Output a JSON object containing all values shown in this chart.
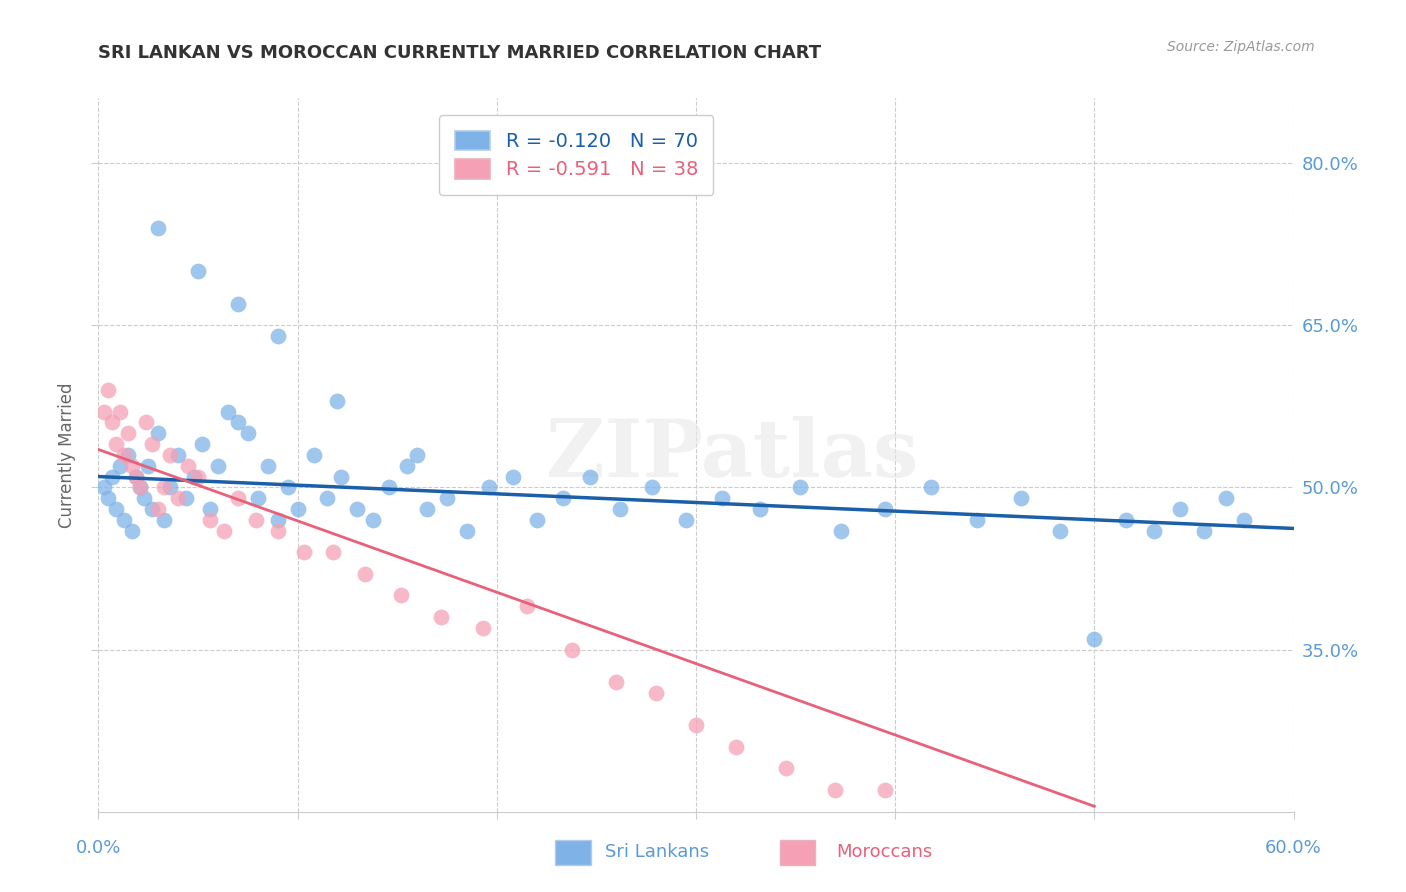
{
  "title": "SRI LANKAN VS MOROCCAN CURRENTLY MARRIED CORRELATION CHART",
  "source": "Source: ZipAtlas.com",
  "ylabel": "Currently Married",
  "legend_blue_r": -0.12,
  "legend_pink_r": -0.591,
  "legend_blue_n": 70,
  "legend_pink_n": 38,
  "xlim": [
    0.0,
    0.6
  ],
  "ylim": [
    0.2,
    0.86
  ],
  "yticks": [
    0.35,
    0.5,
    0.65,
    0.8
  ],
  "ytick_labels": [
    "35.0%",
    "50.0%",
    "65.0%",
    "80.0%"
  ],
  "xticks": [
    0.0,
    0.1,
    0.2,
    0.3,
    0.4,
    0.5,
    0.6
  ],
  "blue_color": "#7fb3e8",
  "pink_color": "#f5a0b5",
  "blue_line_color": "#1a5fa8",
  "pink_line_color": "#e8607a",
  "background_color": "#ffffff",
  "watermark": "ZIPatlas",
  "blue_scatter_x": [
    0.003,
    0.005,
    0.007,
    0.009,
    0.011,
    0.013,
    0.015,
    0.017,
    0.019,
    0.021,
    0.023,
    0.025,
    0.027,
    0.03,
    0.033,
    0.036,
    0.04,
    0.044,
    0.048,
    0.052,
    0.056,
    0.06,
    0.065,
    0.07,
    0.075,
    0.08,
    0.085,
    0.09,
    0.095,
    0.1,
    0.108,
    0.115,
    0.122,
    0.13,
    0.138,
    0.146,
    0.155,
    0.165,
    0.175,
    0.185,
    0.196,
    0.208,
    0.22,
    0.233,
    0.247,
    0.262,
    0.278,
    0.295,
    0.313,
    0.332,
    0.352,
    0.373,
    0.395,
    0.418,
    0.441,
    0.463,
    0.483,
    0.5,
    0.516,
    0.53,
    0.543,
    0.555,
    0.566,
    0.575,
    0.03,
    0.05,
    0.07,
    0.09,
    0.12,
    0.16
  ],
  "blue_scatter_y": [
    0.5,
    0.49,
    0.51,
    0.48,
    0.52,
    0.47,
    0.53,
    0.46,
    0.51,
    0.5,
    0.49,
    0.52,
    0.48,
    0.55,
    0.47,
    0.5,
    0.53,
    0.49,
    0.51,
    0.54,
    0.48,
    0.52,
    0.57,
    0.56,
    0.55,
    0.49,
    0.52,
    0.47,
    0.5,
    0.48,
    0.53,
    0.49,
    0.51,
    0.48,
    0.47,
    0.5,
    0.52,
    0.48,
    0.49,
    0.46,
    0.5,
    0.51,
    0.47,
    0.49,
    0.51,
    0.48,
    0.5,
    0.47,
    0.49,
    0.48,
    0.5,
    0.46,
    0.48,
    0.5,
    0.47,
    0.49,
    0.46,
    0.36,
    0.47,
    0.46,
    0.48,
    0.46,
    0.49,
    0.47,
    0.74,
    0.7,
    0.67,
    0.64,
    0.58,
    0.53
  ],
  "pink_scatter_x": [
    0.003,
    0.005,
    0.007,
    0.009,
    0.011,
    0.013,
    0.015,
    0.017,
    0.019,
    0.021,
    0.024,
    0.027,
    0.03,
    0.033,
    0.036,
    0.04,
    0.045,
    0.05,
    0.056,
    0.063,
    0.07,
    0.079,
    0.09,
    0.103,
    0.118,
    0.134,
    0.152,
    0.172,
    0.193,
    0.215,
    0.238,
    0.26,
    0.28,
    0.3,
    0.32,
    0.345,
    0.37,
    0.395
  ],
  "pink_scatter_y": [
    0.57,
    0.59,
    0.56,
    0.54,
    0.57,
    0.53,
    0.55,
    0.52,
    0.51,
    0.5,
    0.56,
    0.54,
    0.48,
    0.5,
    0.53,
    0.49,
    0.52,
    0.51,
    0.47,
    0.46,
    0.49,
    0.47,
    0.46,
    0.44,
    0.44,
    0.42,
    0.4,
    0.38,
    0.37,
    0.39,
    0.35,
    0.32,
    0.31,
    0.28,
    0.26,
    0.24,
    0.22,
    0.22
  ],
  "blue_line_x0": 0.0,
  "blue_line_x1": 0.6,
  "blue_line_y0": 0.51,
  "blue_line_y1": 0.462,
  "pink_line_x0": 0.0,
  "pink_line_x1": 0.5,
  "pink_line_y0": 0.535,
  "pink_line_y1": 0.205
}
